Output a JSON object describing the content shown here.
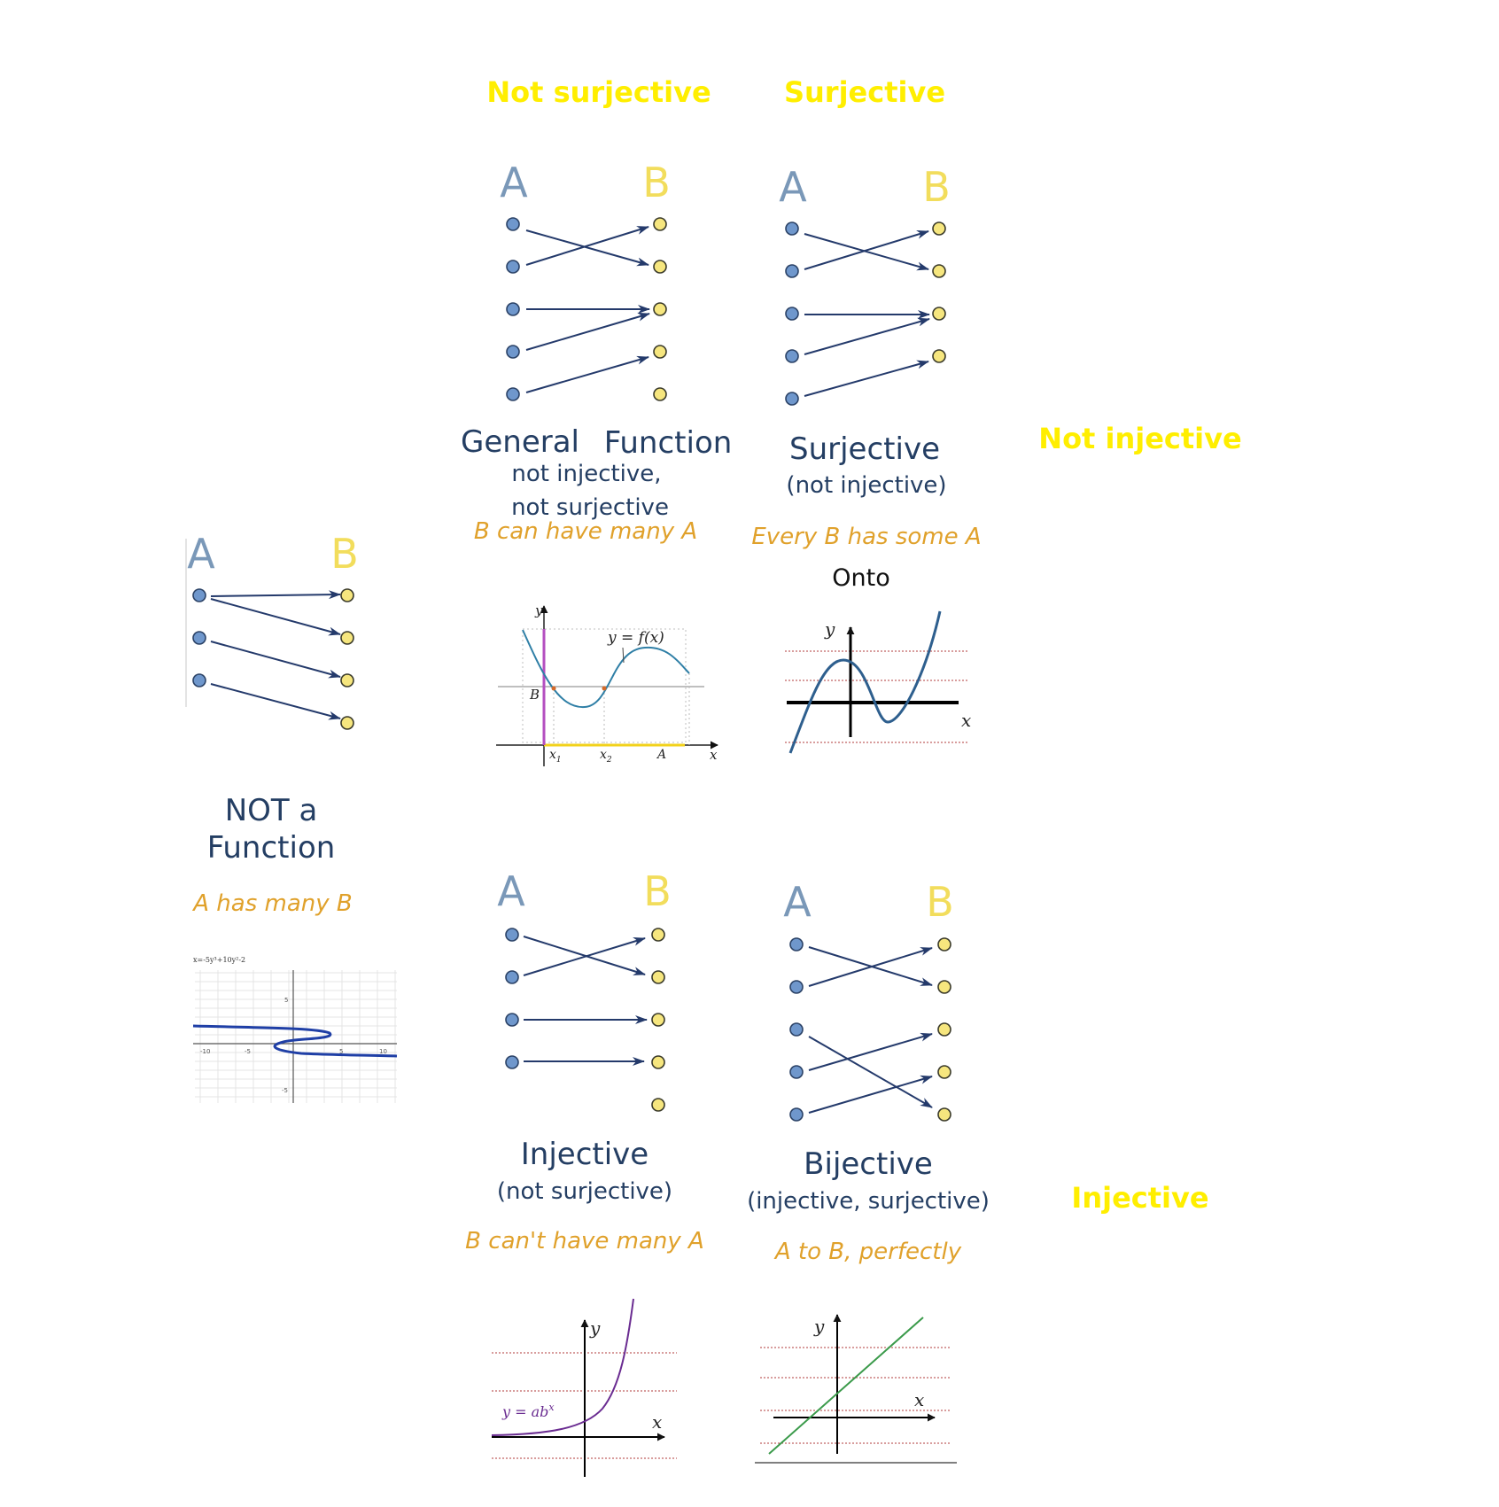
{
  "headings": {
    "not_surjective": "Not surjective",
    "surjective": "Surjective",
    "not_injective": "Not injective",
    "injective": "Injective"
  },
  "set_labels": {
    "a": "A",
    "b": "B"
  },
  "cards": {
    "general": {
      "title_left": "General",
      "title_right": "Function",
      "sub1": "not injective,",
      "sub2": "not surjective",
      "note": "B can have many A"
    },
    "surjective": {
      "title": "Surjective",
      "sub": "(not injective)",
      "note": "Every B has some A",
      "extra": "Onto"
    },
    "not_function": {
      "title1": "NOT a",
      "title2": "Function",
      "note": "A has many B"
    },
    "injective": {
      "title": "Injective",
      "sub": "(not surjective)",
      "note": "B can't have many A"
    },
    "bijective": {
      "title": "Bijective",
      "sub": "(injective, surjective)",
      "note": "A to B, perfectly"
    }
  },
  "graphs": {
    "general": {
      "y": "y",
      "x": "x",
      "curve": "y = f(x)",
      "b": "B",
      "x1": "x",
      "x1_sub": "1",
      "x2": "x",
      "x2_sub": "2",
      "a": "A"
    },
    "surjective": {
      "y": "y",
      "x": "x"
    },
    "not_function": {
      "equation": "x=-5y³+10y²-2",
      "t_neg10": "-10",
      "t_neg5": "-5",
      "t_5": "5",
      "t_10": "10",
      "t_y5": "5",
      "t_yneg5": "-5"
    },
    "injective": {
      "y": "y",
      "x": "x",
      "curve": "y = ab",
      "curve_sup": "x"
    },
    "bijective": {
      "y": "y",
      "x": "x"
    }
  },
  "colors": {
    "heading_yellow": "#ffee00",
    "title_navy": "#243e63",
    "note_orange": "#e0a12b",
    "a_dot": "#6f97cc",
    "b_dot": "#f6e67e",
    "arrow": "#243a6b"
  }
}
